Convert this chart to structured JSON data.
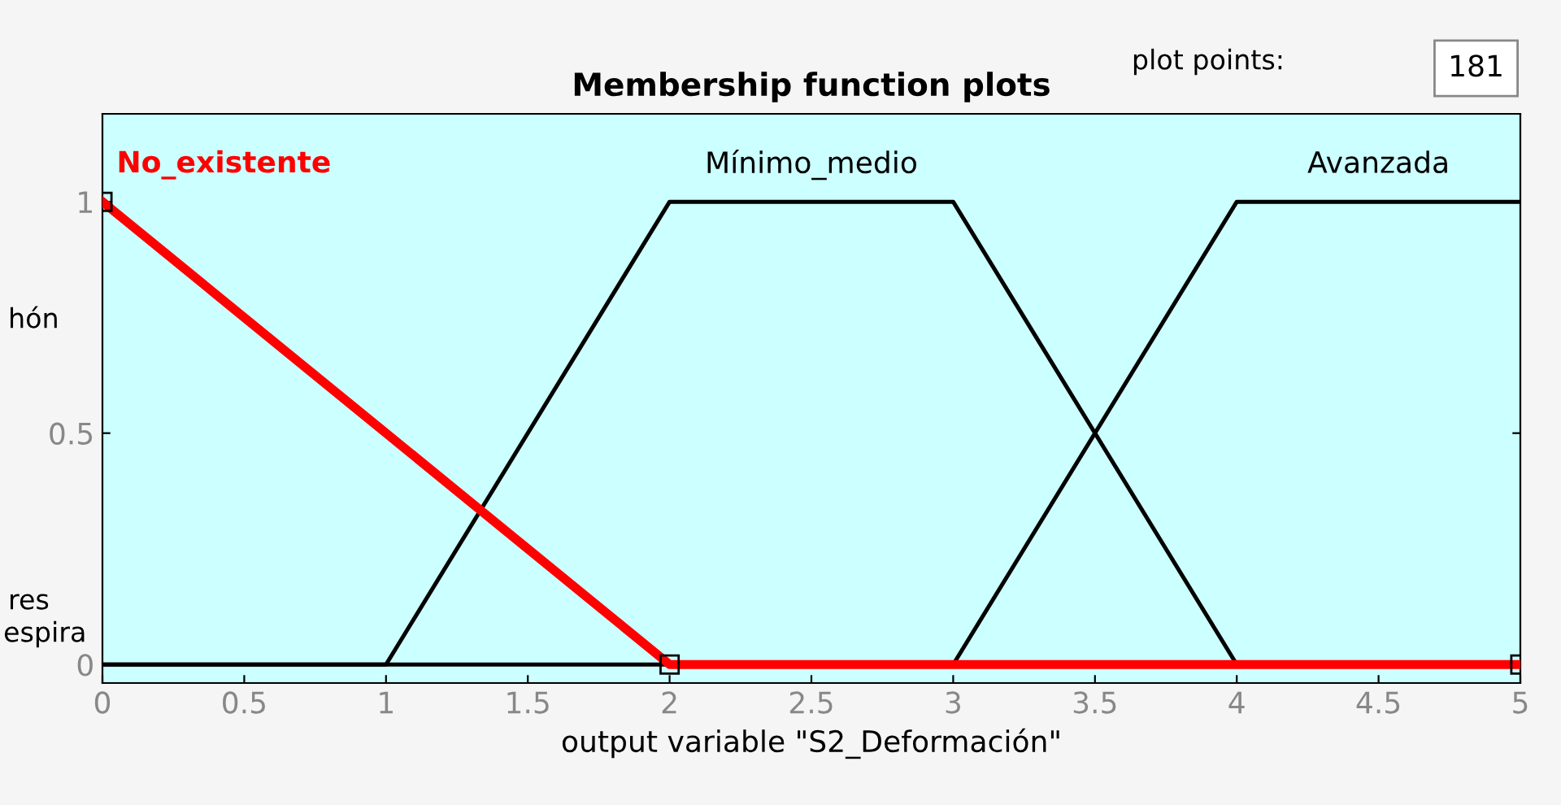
{
  "chart_data": {
    "type": "line",
    "title": "Membership function plots",
    "xlabel": "output variable \"S2_Deformación\"",
    "xlim": [
      0,
      5
    ],
    "xticks": [
      0,
      0.5,
      1,
      1.5,
      2,
      2.5,
      3,
      3.5,
      4,
      4.5,
      5
    ],
    "ylim": [
      -0.04,
      1.19
    ],
    "yticks": [
      0,
      0.5,
      1
    ],
    "grid": false,
    "legend": false,
    "series": [
      {
        "name": "No_existente",
        "color": "#ff0000",
        "x": [
          0,
          2,
          5
        ],
        "values": [
          1,
          0,
          0
        ],
        "marker": "square"
      },
      {
        "name": "Mínimo_medio",
        "color": "#000000",
        "x": [
          0,
          1,
          2,
          3,
          4,
          5
        ],
        "values": [
          0,
          0,
          1,
          1,
          0,
          0
        ]
      },
      {
        "name": "Avanzada",
        "color": "#000000",
        "x": [
          0,
          3,
          4,
          5
        ],
        "values": [
          0,
          0,
          1,
          1
        ]
      }
    ],
    "annotations": [
      "plot points:",
      "181",
      "hón",
      "res",
      "espira"
    ]
  }
}
